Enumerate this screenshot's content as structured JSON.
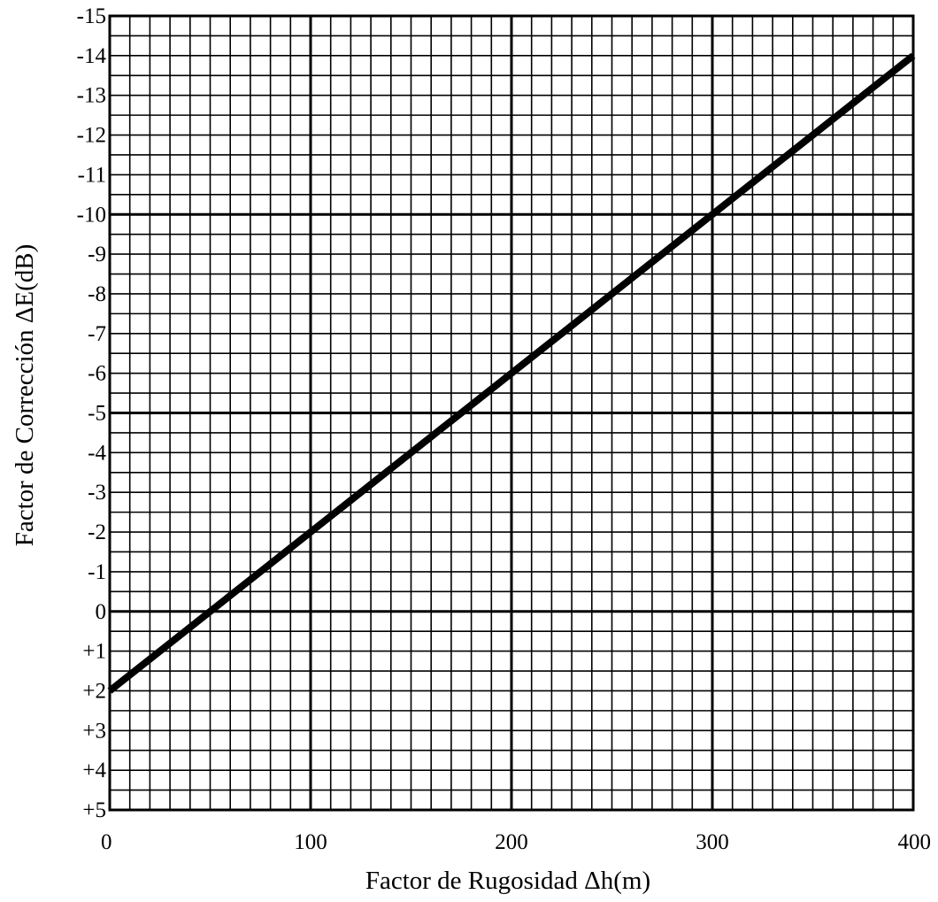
{
  "chart_data": {
    "type": "line",
    "title": "",
    "xlabel": "Factor de Rugosidad Δh(m)",
    "ylabel": "Factor de Corrección ΔE(dB)",
    "xlim": [
      0,
      400
    ],
    "ylim": [
      5,
      -15
    ],
    "y_axis_inverted": true,
    "grid": true,
    "minor_grid_x_step": 10,
    "minor_grid_y_step": 0.5,
    "major_grid_x_step": 100,
    "major_grid_y_step": 5,
    "x_ticks": [
      0,
      100,
      200,
      300,
      400
    ],
    "x_tick_labels": [
      "0",
      "100",
      "200",
      "300",
      "400"
    ],
    "y_ticks": [
      -15,
      -14,
      -13,
      -12,
      -11,
      -10,
      -9,
      -8,
      -7,
      -6,
      -5,
      -4,
      -3,
      -2,
      -1,
      0,
      1,
      2,
      3,
      4,
      5
    ],
    "y_tick_labels": [
      "-15",
      "-14",
      "-13",
      "-12",
      "-11",
      "-10",
      "-9",
      "-8",
      "-7",
      "-6",
      "-5",
      "-4",
      "-3",
      "-2",
      "-1",
      "0",
      "+1",
      "+2",
      "+3",
      "+4",
      "+5"
    ],
    "series": [
      {
        "x": [
          0,
          400
        ],
        "y": [
          2,
          -14
        ],
        "color": "#000000"
      }
    ]
  }
}
